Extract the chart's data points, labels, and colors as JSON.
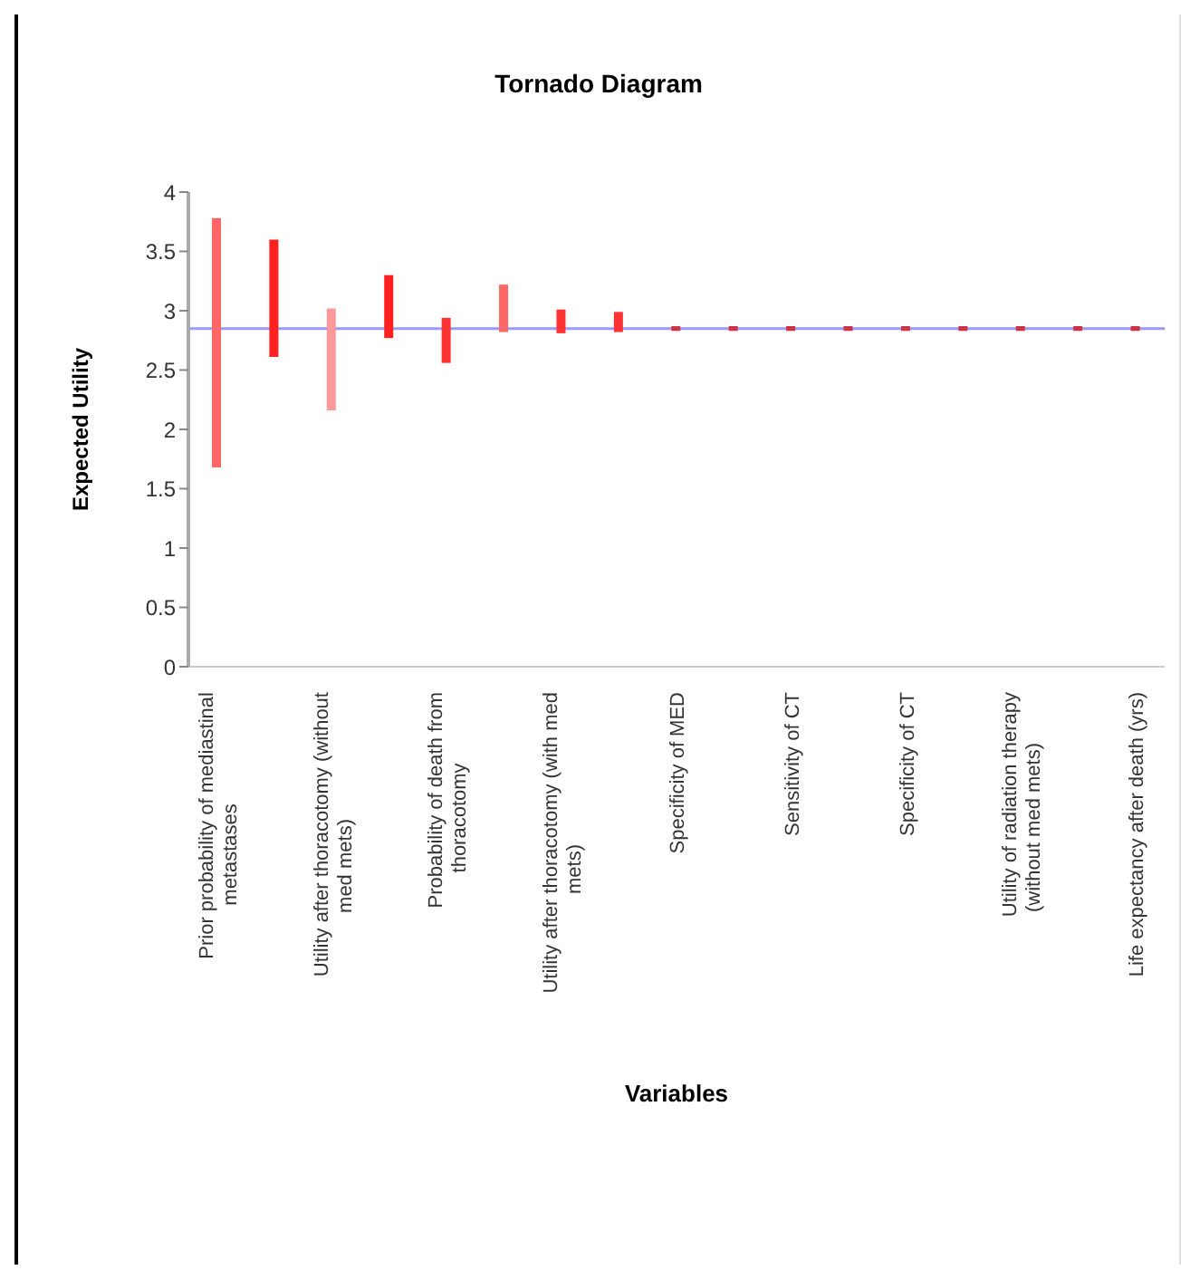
{
  "chart_data": {
    "type": "bar",
    "title": "Tornado Diagram",
    "xlabel": "Variables",
    "ylabel": "Expected Utility",
    "categories": [
      "Prior probability of mediastinal metastases",
      null,
      "Utility after thoracotomy (without med mets)",
      null,
      "Probability of death from thoracotomy",
      null,
      "Utility after thoracotomy (with med mets)",
      null,
      "Specificity of MED",
      null,
      "Sensitivity of CT",
      null,
      "Specificity of CT",
      null,
      "Utility of radiation therapy (without med mets)",
      null,
      "Life expectancy after death (yrs)"
    ],
    "base": [
      1.68,
      2.61,
      2.16,
      2.77,
      2.56,
      2.82,
      2.81,
      2.82,
      2.83,
      2.83,
      2.83,
      2.83,
      2.83,
      2.83,
      2.83,
      2.83,
      2.83
    ],
    "values": [
      2.1,
      0.99,
      0.86,
      0.53,
      0.38,
      0.4,
      0.2,
      0.17,
      0.04,
      0.04,
      0.04,
      0.04,
      0.04,
      0.04,
      0.04,
      0.04,
      0.04
    ],
    "colors": [
      "#ff6666",
      "#ff2020",
      "#ff9999",
      "#ff2020",
      "#ff3333",
      "#ff6666",
      "#ff3333",
      "#ff3333",
      "#cc3344",
      "#cc3344",
      "#cc3344",
      "#cc3344",
      "#cc3344",
      "#cc3344",
      "#cc3344",
      "#cc3344",
      "#cc3344"
    ],
    "ylim": [
      0,
      4
    ],
    "yticks": [
      0,
      0.5,
      1,
      1.5,
      2,
      2.5,
      3,
      3.5,
      4
    ],
    "ref_lines": [
      {
        "axis": "y",
        "value": 2.85,
        "color": "#9999ff"
      }
    ]
  }
}
